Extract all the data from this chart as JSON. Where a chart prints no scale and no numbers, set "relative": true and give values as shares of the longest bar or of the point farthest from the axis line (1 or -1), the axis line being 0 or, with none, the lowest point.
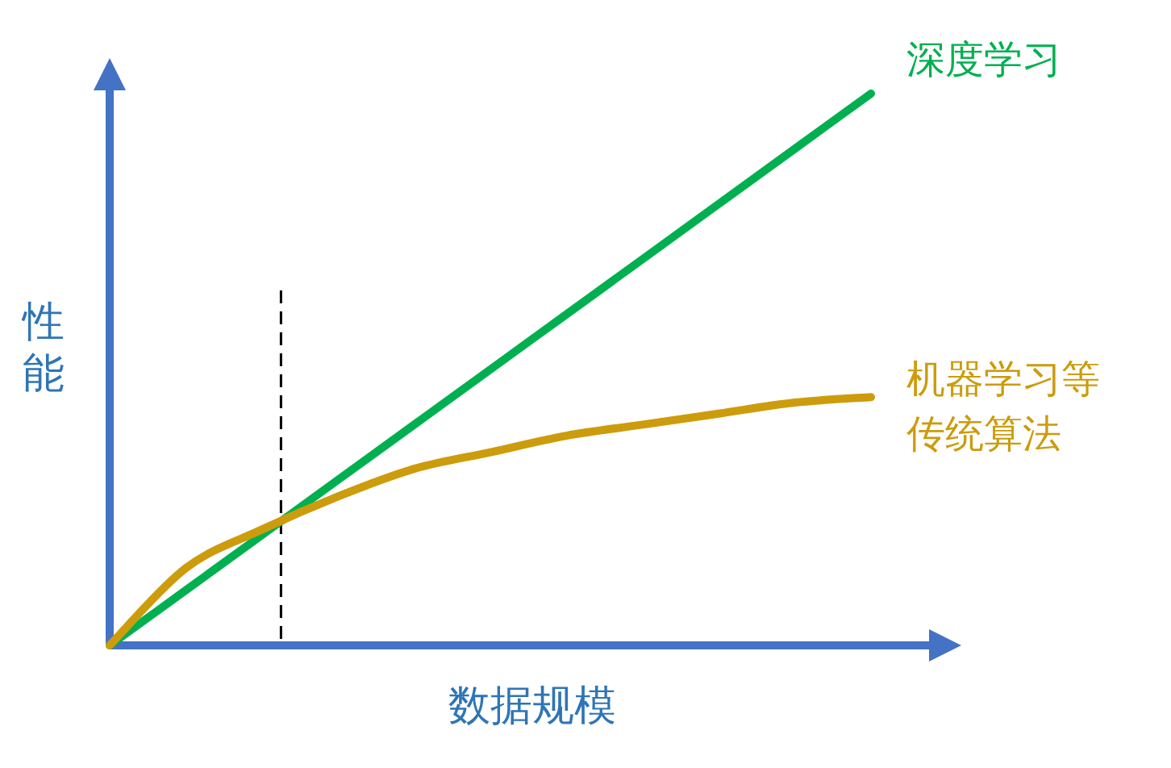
{
  "chart_data": {
    "type": "line",
    "relative": true,
    "xlabel": "数据规模",
    "ylabel": "性能",
    "categories": [
      null,
      null,
      null,
      null,
      null,
      null,
      null,
      null,
      null,
      null,
      null
    ],
    "series": [
      {
        "name": "深度学习",
        "color": "#00b050",
        "values": [
          0,
          0.1,
          0.2,
          0.3,
          0.4,
          0.5,
          0.6,
          0.7,
          0.8,
          0.9,
          1
        ]
      },
      {
        "name": "机器学习等传统算法",
        "color": "#cc9c0c",
        "values": [
          0,
          0.14,
          0.21,
          0.27,
          0.32,
          0.35,
          0.38,
          0.4,
          0.42,
          0.44,
          0.45
        ]
      }
    ]
  }
}
